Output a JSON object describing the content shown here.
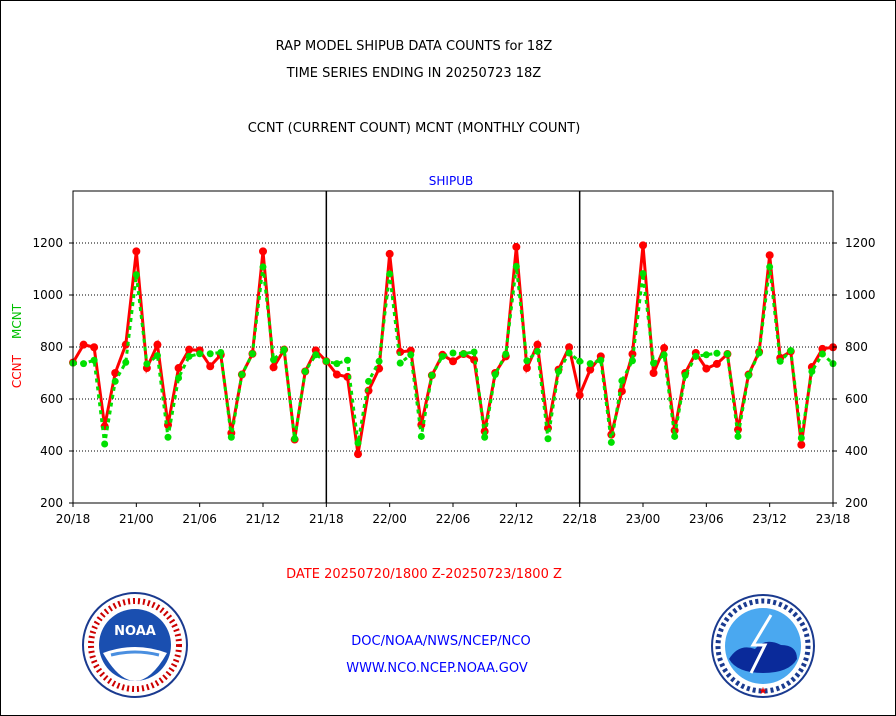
{
  "header": {
    "title1": "RAP MODEL SHIPUB DATA COUNTS for 18Z",
    "title2": "TIME SERIES ENDING IN 20250723 18Z",
    "subtitle": "CCNT (CURRENT COUNT) MCNT (MONTHLY COUNT)"
  },
  "footer": {
    "date_range": "DATE 20250720/1800 Z-20250723/1800 Z",
    "org": "DOC/NOAA/NWS/NCEP/NCO",
    "url": "WWW.NCO.NCEP.NOAA.GOV"
  },
  "logos": {
    "noaa": {
      "center": "NOAA",
      "ring": "NATIONAL OCEANIC AND ATMOSPHERIC ADMINISTRATION",
      "bottom": "U.S. DEPARTMENT OF COMMERCE"
    },
    "nws": {
      "ring": "NATIONAL WEATHER SERVICE"
    }
  },
  "colors": {
    "ccnt": "#ff0000",
    "mcnt": "#00e000",
    "label": "#0000ff"
  },
  "chart_data": {
    "type": "line",
    "title": "SHIPUB",
    "ylabel_left_1": "CCNT",
    "ylabel_left_2": "MCNT",
    "ylim": [
      200,
      1400
    ],
    "yticks": [
      200,
      400,
      600,
      800,
      1000,
      1200
    ],
    "grid": true,
    "xlim_hours": [
      0,
      72
    ],
    "xticks": [
      {
        "h": 0,
        "label": "20/18"
      },
      {
        "h": 6,
        "label": "21/00"
      },
      {
        "h": 12,
        "label": "21/06"
      },
      {
        "h": 18,
        "label": "21/12"
      },
      {
        "h": 24,
        "label": "21/18"
      },
      {
        "h": 30,
        "label": "22/00"
      },
      {
        "h": 36,
        "label": "22/06"
      },
      {
        "h": 42,
        "label": "22/12"
      },
      {
        "h": 48,
        "label": "22/18"
      },
      {
        "h": 54,
        "label": "23/00"
      },
      {
        "h": 60,
        "label": "23/06"
      },
      {
        "h": 66,
        "label": "23/12"
      },
      {
        "h": 72,
        "label": "23/18"
      }
    ],
    "day_separators_hours": [
      24,
      48
    ],
    "series": [
      {
        "name": "CCNT",
        "values": [
          740,
          809,
          799,
          495,
          700,
          809,
          1168,
          719,
          809,
          500,
          719,
          790,
          787,
          726,
          770,
          469,
          694,
          774,
          1168,
          722,
          790,
          444,
          706,
          787,
          745,
          694,
          685,
          388,
          632,
          717,
          1158,
          781,
          786,
          501,
          691,
          770,
          745,
          773,
          751,
          476,
          700,
          764,
          1185,
          719,
          809,
          488,
          713,
          799,
          615,
          713,
          764,
          463,
          630,
          773,
          1191,
          700,
          796,
          479,
          700,
          777,
          717,
          735,
          773,
          482,
          694,
          781,
          1153,
          758,
          783,
          424,
          723,
          793,
          799
        ]
      },
      {
        "name": "MCNT",
        "values": [
          738,
          736,
          749,
          427,
          668,
          741,
          1078,
          735,
          767,
          453,
          681,
          764,
          774,
          774,
          779,
          453,
          694,
          774,
          1108,
          751,
          790,
          447,
          706,
          770,
          745,
          736,
          749,
          431,
          668,
          745,
          1081,
          738,
          770,
          456,
          691,
          764,
          777,
          774,
          781,
          453,
          694,
          773,
          1110,
          747,
          783,
          447,
          706,
          777,
          745,
          736,
          749,
          433,
          670,
          747,
          1082,
          738,
          770,
          456,
          691,
          764,
          770,
          776,
          773,
          456,
          691,
          777,
          1108,
          745,
          786,
          450,
          706,
          773,
          736
        ]
      }
    ]
  }
}
